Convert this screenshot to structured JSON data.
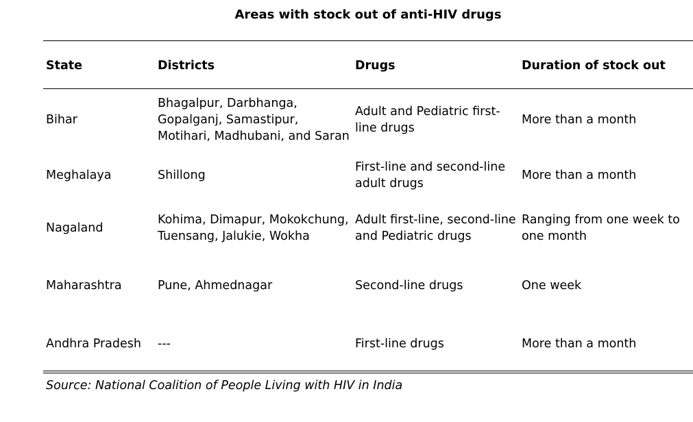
{
  "title": "Areas with stock out of anti-HIV drugs",
  "columns": [
    "State",
    "Districts",
    "Drugs",
    "Duration of stock out"
  ],
  "rows": [
    {
      "state": "Bihar",
      "districts": "Bhagalpur, Darbhanga, Gopalganj, Samastipur, Motihari, Madhubani, and Saran",
      "drugs": "Adult and Pediatric first-line drugs",
      "duration": "More than a month"
    },
    {
      "state": "Meghalaya",
      "districts": "Shillong",
      "drugs": "First-line and second-line adult drugs",
      "duration": "More than a month"
    },
    {
      "state": "Nagaland",
      "districts": "Kohima, Dimapur, Mokokchung, Tuensang, Jalukie, Wokha",
      "drugs": "Adult first-line, second-line and Pediatric drugs",
      "duration": "Ranging from one week to one month"
    },
    {
      "state": "Maharashtra",
      "districts": "Pune, Ahmednagar",
      "drugs": "Second-line drugs",
      "duration": "One week"
    },
    {
      "state": "Andhra Pradesh",
      "districts": "---",
      "drugs": "First-line drugs",
      "duration": "More than a month"
    }
  ],
  "source": "Source: National Coalition of People Living with HIV in India"
}
